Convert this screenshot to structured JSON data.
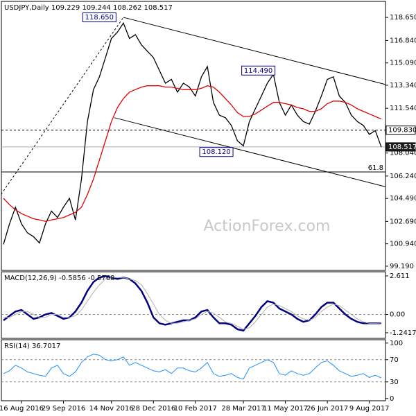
{
  "chart_data": [
    {
      "type": "line",
      "title": "USDJPY,Daily",
      "quote": "109.229 109.244 108.262 108.517",
      "watermark": "ActionForex.com",
      "ylim": [
        98.86,
        119.9
      ],
      "yticks": [
        {
          "value": 118.65,
          "label": "118.650"
        },
        {
          "value": 116.84,
          "label": "116.840"
        },
        {
          "value": 115.09,
          "label": "115.090"
        },
        {
          "value": 113.34,
          "label": "113.340"
        },
        {
          "value": 111.54,
          "label": "111.540"
        },
        {
          "value": 108.04,
          "label": "108.040"
        },
        {
          "value": 106.24,
          "label": "106.240"
        },
        {
          "value": 104.49,
          "label": "104.490"
        },
        {
          "value": 102.69,
          "label": "102.690"
        },
        {
          "value": 100.94,
          "label": "100.940"
        },
        {
          "value": 99.19,
          "label": "99.190"
        }
      ],
      "series": [
        {
          "color": "#000000",
          "values": [
            100.9,
            102.5,
            103.8,
            102.5,
            101.8,
            101.5,
            101.0,
            102.5,
            103.5,
            103.0,
            103.8,
            104.5,
            102.8,
            106.0,
            110.5,
            113.0,
            114.0,
            115.5,
            117.0,
            117.5,
            118.2,
            117.0,
            117.3,
            116.5,
            116.0,
            115.5,
            114.5,
            113.5,
            113.8,
            112.8,
            113.5,
            113.2,
            112.5,
            114.0,
            114.8,
            112.0,
            111.0,
            110.8,
            110.2,
            109.0,
            108.6,
            110.5,
            111.5,
            112.5,
            113.5,
            114.2,
            112.0,
            111.0,
            111.8,
            111.0,
            110.5,
            110.3,
            111.3,
            112.5,
            113.8,
            114.0,
            112.5,
            112.0,
            111.0,
            110.5,
            110.2,
            109.5,
            109.8,
            108.5
          ]
        },
        {
          "color": "#e00000",
          "values": [
            104.5,
            104.0,
            103.6,
            103.3,
            103.1,
            102.9,
            102.8,
            102.7,
            102.8,
            102.9,
            103.0,
            103.2,
            103.4,
            103.8,
            104.8,
            106.0,
            107.5,
            109.0,
            110.5,
            111.6,
            112.3,
            112.8,
            113.0,
            113.2,
            113.3,
            113.3,
            113.3,
            113.2,
            113.2,
            113.1,
            113.0,
            113.0,
            113.0,
            113.1,
            113.3,
            113.2,
            112.8,
            112.3,
            111.8,
            111.2,
            110.9,
            110.9,
            111.1,
            111.4,
            111.7,
            112.0,
            112.0,
            111.9,
            111.8,
            111.6,
            111.5,
            111.3,
            111.3,
            111.5,
            111.9,
            112.1,
            112.1,
            112.0,
            111.8,
            111.5,
            111.3,
            111.1,
            110.9,
            110.7
          ]
        }
      ],
      "trendlines": [
        {
          "x": [
            20,
            63.7
          ],
          "values": [
            118.65,
            113.4
          ],
          "style": "solid"
        },
        {
          "x": [
            18.5,
            63.7
          ],
          "values": [
            110.8,
            105.4
          ],
          "style": "solid"
        },
        {
          "x": [
            -0.4,
            20
          ],
          "values": [
            104.8,
            118.65
          ],
          "style": "dashed"
        }
      ],
      "levels": [
        {
          "value": 109.83,
          "label": "109.830",
          "style": "dashed",
          "label_at": "axis"
        },
        {
          "value": 108.517,
          "label": "108.517",
          "style": "gray",
          "label_at": "axis"
        },
        {
          "value": 106.56,
          "label": "61.8",
          "style": "solid",
          "label_at": "plot"
        }
      ],
      "annotations": [
        {
          "text": "118.650",
          "x": 19,
          "value": 118.65
        },
        {
          "text": "114.490",
          "x": 45.5,
          "value": 114.49
        },
        {
          "text": "108.120",
          "x": 38.5,
          "value": 108.12
        }
      ]
    },
    {
      "type": "line",
      "title": "MACD(12,26,9) -0.5856 -0.5768",
      "ylim": [
        -1.62,
        2.89
      ],
      "yticks": [
        2.611,
        {
          "value": 0,
          "label": "0.00"
        },
        -1.2417
      ],
      "levels": [
        0
      ],
      "series": [
        {
          "color": "#000080",
          "width": 2.5,
          "values": [
            -0.4,
            -0.1,
            0.2,
            0.3,
            0.0,
            -0.3,
            -0.2,
            0.0,
            0.1,
            -0.1,
            -0.3,
            -0.2,
            0.2,
            0.8,
            1.6,
            2.2,
            2.5,
            2.6,
            2.5,
            2.4,
            2.5,
            2.4,
            2.1,
            1.6,
            0.8,
            -0.2,
            -0.6,
            -0.7,
            -0.6,
            -0.5,
            -0.4,
            -0.4,
            -0.2,
            0.2,
            0.3,
            -0.2,
            -0.6,
            -0.6,
            -0.7,
            -1.0,
            -1.1,
            -0.6,
            -0.1,
            0.5,
            0.9,
            0.8,
            0.4,
            0.2,
            0.0,
            -0.3,
            -0.5,
            -0.4,
            0.0,
            0.5,
            0.8,
            0.8,
            0.4,
            0.0,
            -0.3,
            -0.5,
            -0.6,
            -0.6,
            -0.6,
            -0.59
          ]
        },
        {
          "color": "#b0b0b0",
          "width": 1,
          "values": [
            -0.2,
            -0.2,
            0,
            0.2,
            0.2,
            0,
            -0.2,
            -0.2,
            0,
            0,
            -0.2,
            -0.2,
            -0.1,
            0.3,
            0.9,
            1.5,
            2.0,
            2.4,
            2.5,
            2.5,
            2.5,
            2.4,
            2.3,
            2.0,
            1.4,
            0.7,
            0.0,
            -0.4,
            -0.6,
            -0.6,
            -0.5,
            -0.4,
            -0.3,
            0.0,
            0.2,
            0.1,
            -0.2,
            -0.5,
            -0.6,
            -0.8,
            -1.0,
            -0.9,
            -0.5,
            0.0,
            0.5,
            0.7,
            0.6,
            0.4,
            0.2,
            -0.1,
            -0.3,
            -0.4,
            -0.2,
            0.2,
            0.5,
            0.7,
            0.6,
            0.3,
            0.0,
            -0.3,
            -0.5,
            -0.6,
            -0.6,
            -0.58
          ]
        }
      ]
    },
    {
      "type": "line",
      "title": "RSI(14) 36.7017",
      "ylim": [
        -4,
        106
      ],
      "yticks": [
        100,
        70,
        30,
        0
      ],
      "levels": [
        70,
        30
      ],
      "categories": [
        null,
        null,
        null,
        "16 Aug 2016",
        null,
        null,
        null,
        null,
        null,
        null,
        "29 Sep 2016",
        null,
        null,
        null,
        null,
        null,
        null,
        null,
        "14 Nov 2016",
        null,
        null,
        null,
        null,
        null,
        null,
        "28 Dec 2016",
        null,
        null,
        null,
        null,
        null,
        null,
        "10 Feb 2017",
        null,
        null,
        null,
        null,
        null,
        null,
        null,
        "28 Mar 2017",
        null,
        null,
        null,
        null,
        null,
        null,
        "11 May 2017",
        null,
        null,
        null,
        null,
        null,
        null,
        "26 Jun 2017",
        null,
        null,
        null,
        null,
        null,
        null,
        "9 Aug 2017",
        null,
        null
      ],
      "series": [
        {
          "color": "#1e90ff",
          "width": 1,
          "values": [
            45,
            50,
            60,
            55,
            48,
            45,
            42,
            40,
            55,
            60,
            45,
            40,
            48,
            65,
            75,
            80,
            78,
            70,
            68,
            70,
            75,
            60,
            65,
            60,
            55,
            50,
            48,
            52,
            45,
            55,
            55,
            50,
            48,
            55,
            65,
            45,
            40,
            42,
            45,
            38,
            35,
            55,
            60,
            65,
            70,
            65,
            45,
            42,
            50,
            45,
            42,
            45,
            55,
            65,
            68,
            60,
            50,
            45,
            40,
            42,
            45,
            38,
            42,
            37
          ]
        }
      ]
    }
  ]
}
